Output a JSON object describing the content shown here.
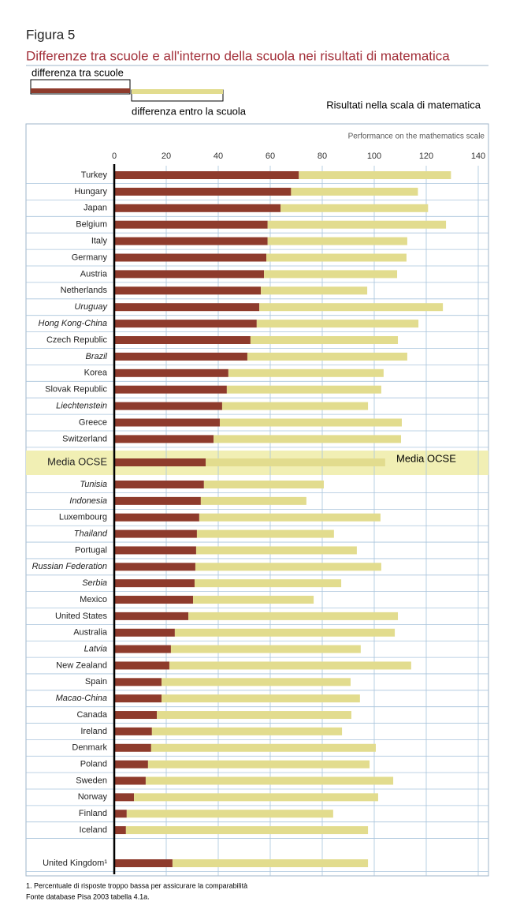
{
  "chart_data": {
    "type": "stacked-bar-horizontal",
    "figure_label": "Figura 5",
    "title": "Differenze  tra  scuole e all'interno della scuola nei risultati di matematica",
    "subtitle": "Risultati nella scala di matematica",
    "axis_title": "Performance on the mathematics scale",
    "categories": [
      "Turkey",
      "Hungary",
      "Japan",
      "Belgium",
      "Italy",
      "Germany",
      "Austria",
      "Netherlands",
      "Uruguay",
      "Hong Kong-China",
      "Czech Republic",
      "Brazil",
      "Korea",
      "Slovak Republic",
      "Liechtenstein",
      "Greece",
      "Switzerland",
      "Media OCSE",
      "Tunisia",
      "Indonesia",
      "Luxembourg",
      "Thailand",
      "Portugal",
      "Russian Federation",
      "Serbia",
      "Mexico",
      "United States",
      "Australia",
      "Latvia",
      "New Zealand",
      "Spain",
      "Macao-China",
      "Canada",
      "Ireland",
      "Denmark",
      "Poland",
      "Sweden",
      "Norway",
      "Finland",
      "Iceland",
      "United Kingdom¹"
    ],
    "italic": [
      false,
      false,
      false,
      false,
      false,
      false,
      false,
      false,
      true,
      true,
      false,
      true,
      false,
      false,
      true,
      false,
      false,
      false,
      true,
      true,
      false,
      true,
      false,
      true,
      true,
      false,
      false,
      false,
      true,
      false,
      false,
      true,
      false,
      false,
      false,
      false,
      false,
      false,
      false,
      false,
      false
    ],
    "series": [
      {
        "name": "differenza tra scuole",
        "color": "#8e3b2c",
        "values": [
          71,
          68,
          64,
          59,
          59,
          58.5,
          57.6,
          56.4,
          55.8,
          54.8,
          52.4,
          51.2,
          43.9,
          43.3,
          41.5,
          40.6,
          38.2,
          35.2,
          34.5,
          33.3,
          32.7,
          31.8,
          31.5,
          31.2,
          30.9,
          30.3,
          28.5,
          23.3,
          21.8,
          21.2,
          18.2,
          18.2,
          16.4,
          14.5,
          14.2,
          13,
          12.1,
          7.6,
          4.8,
          4.5,
          22.4
        ]
      },
      {
        "name": "differenza entro la scuola",
        "color": "#e2dc8e",
        "values": [
          58.5,
          48.8,
          56.7,
          68.6,
          53.7,
          53.9,
          51.2,
          40.9,
          70.6,
          62.2,
          56.7,
          61.5,
          59.7,
          59.4,
          56.1,
          70,
          72.1,
          69,
          46.1,
          40.6,
          69.7,
          52.7,
          61.8,
          71.5,
          56.4,
          46.4,
          80.6,
          84.6,
          73,
          93,
          72.7,
          76.3,
          74.8,
          73.1,
          86.4,
          85.2,
          95.2,
          93.9,
          79.4,
          93.1,
          75.2
        ]
      }
    ],
    "xlim": [
      0,
      140
    ],
    "xticks": [
      0,
      20,
      40,
      60,
      80,
      100,
      120,
      140
    ],
    "grid": true,
    "notes": [
      "1. Percentuale di risposte troppo bassa per assicurare la comparabilità",
      "Fonte database Pisa 2003 tabella 4.1a."
    ]
  }
}
